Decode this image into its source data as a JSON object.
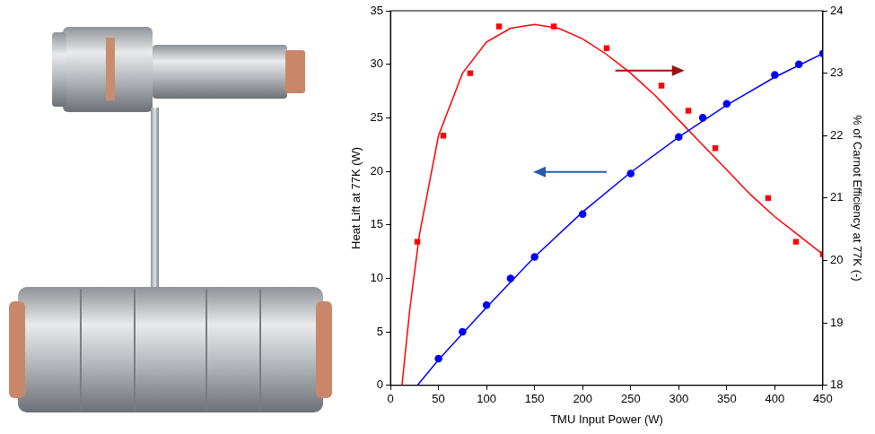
{
  "chart_data": {
    "type": "scatter",
    "xlabel": "TMU Input Power (W)",
    "ylabel": "Heat Lift at 77K (W)",
    "y2label": "% of Carnot Efficiency at 77K (-)",
    "xlim": [
      0,
      450
    ],
    "xticks": [
      0,
      50,
      100,
      150,
      200,
      250,
      300,
      350,
      400,
      450
    ],
    "ylim": [
      0,
      35
    ],
    "yticks": [
      0,
      5,
      10,
      15,
      20,
      25,
      30,
      35
    ],
    "y2lim": [
      18,
      24
    ],
    "y2ticks": [
      18,
      19,
      20,
      21,
      22,
      23,
      24
    ],
    "grid": false,
    "series": [
      {
        "type": "scatter",
        "color": "#0000ff",
        "marker": "circle",
        "line_style": "none",
        "x": [
          50,
          75,
          100,
          125,
          150,
          200,
          250,
          300,
          325,
          350,
          400,
          425,
          450
        ],
        "values": [
          2.5,
          5,
          7.5,
          10,
          12,
          16,
          19.8,
          23.2,
          25,
          26.3,
          29,
          30,
          31
        ]
      },
      {
        "type": "line",
        "color": "#0000ff",
        "marker": "none",
        "line_style": "solid",
        "x": [
          28,
          50,
          100,
          150,
          200,
          250,
          300,
          350,
          400,
          450
        ],
        "values": [
          0,
          2.4,
          7.3,
          12,
          16.2,
          19.9,
          23.2,
          26.2,
          28.8,
          31
        ]
      },
      {
        "type": "scatter",
        "color": "#ff0000",
        "marker": "square",
        "line_style": "none",
        "axis": "y2",
        "x": [
          28,
          55,
          83,
          113,
          170,
          225,
          282,
          310,
          338,
          393,
          422,
          450
        ],
        "values": [
          20.3,
          22.0,
          23.0,
          23.75,
          23.75,
          23.4,
          22.8,
          22.4,
          21.8,
          21.0,
          20.3,
          20.1
        ]
      },
      {
        "type": "line",
        "color": "#ff0000",
        "marker": "none",
        "line_style": "solid",
        "axis": "y2",
        "x": [
          12,
          20,
          30,
          50,
          75,
          100,
          125,
          150,
          175,
          200,
          225,
          250,
          275,
          300,
          325,
          350,
          375,
          400,
          425,
          450
        ],
        "values": [
          18,
          19.2,
          20.4,
          22.0,
          23.0,
          23.5,
          23.72,
          23.78,
          23.72,
          23.55,
          23.3,
          23.0,
          22.65,
          22.25,
          21.85,
          21.45,
          21.05,
          20.7,
          20.4,
          20.1
        ]
      }
    ]
  }
}
